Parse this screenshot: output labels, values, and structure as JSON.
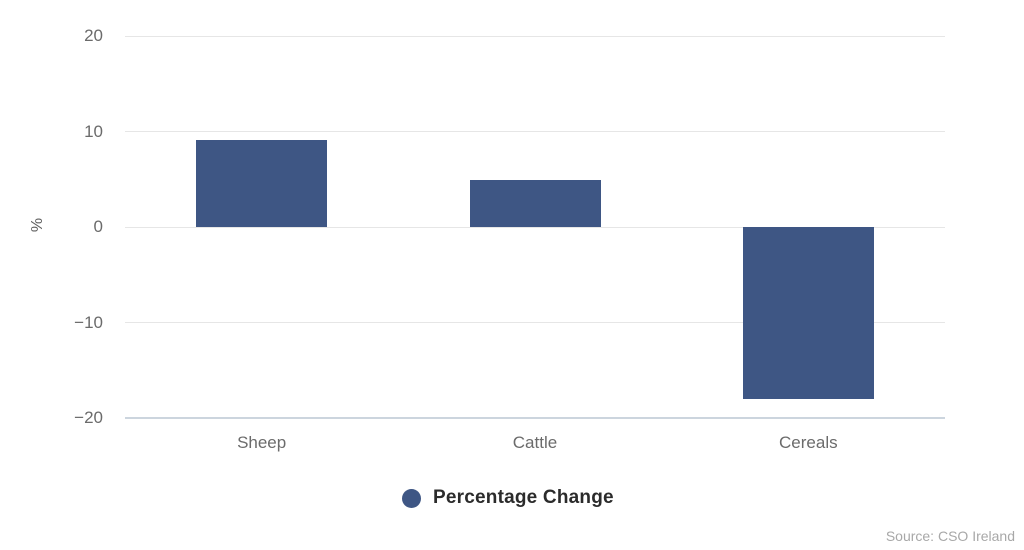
{
  "chart_data": {
    "type": "bar",
    "title": "",
    "categories": [
      "Sheep",
      "Cattle",
      "Cereals"
    ],
    "series": [
      {
        "name": "Percentage Change",
        "color": "#3e5684",
        "values": [
          9.1,
          4.9,
          -18
        ]
      }
    ],
    "xlabel": "",
    "ylabel": "%",
    "ylim": [
      -20,
      20
    ],
    "yticks": [
      20,
      10,
      0,
      -10,
      -20
    ],
    "grid": true,
    "legend_position": "bottom-center",
    "source": "Source: CSO Ireland"
  }
}
